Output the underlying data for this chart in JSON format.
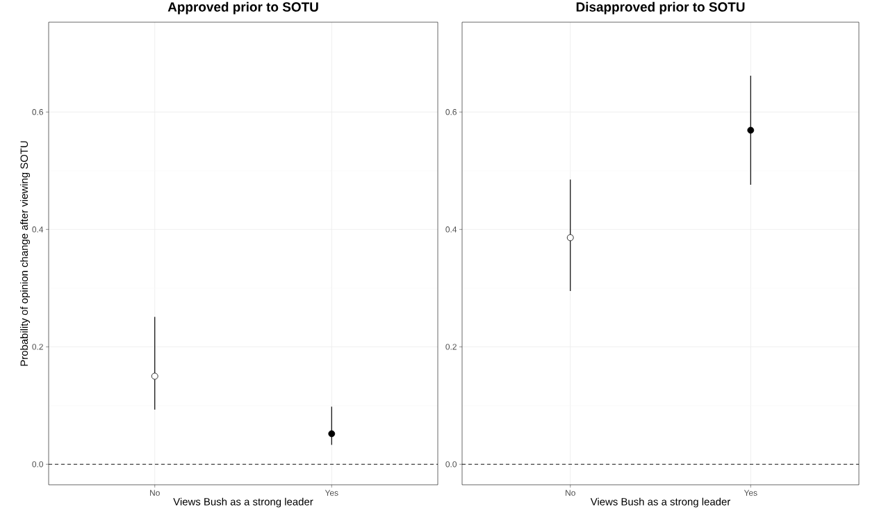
{
  "chart_data": [
    {
      "type": "scatter",
      "title": "Approved prior to SOTU",
      "xlabel": "Views Bush as a strong leader",
      "ylabel": "Probability of opinion change after viewing SOTU",
      "categories": [
        "No",
        "Yes"
      ],
      "ylim": [
        -0.035,
        0.753
      ],
      "yticks": [
        {
          "value": 0,
          "label": "0.0"
        },
        0.2,
        0.4,
        0.6
      ],
      "grid": true,
      "marker": "circle",
      "ref_lines": [
        {
          "axis": "y",
          "value": 0,
          "line_style": "dashed"
        }
      ],
      "series": [
        {
          "color": "#ffffff",
          "values": [
            0.15,
            null
          ],
          "errors": [
            [
              0.093,
              0.251
            ],
            null
          ]
        },
        {
          "color": "#000000",
          "values": [
            null,
            0.052
          ],
          "errors": [
            null,
            [
              0.033,
              0.098
            ]
          ]
        }
      ]
    },
    {
      "type": "scatter",
      "title": "Disapproved prior to SOTU",
      "xlabel": "Views Bush as a strong leader",
      "categories": [
        "No",
        "Yes"
      ],
      "ylim": [
        -0.035,
        0.753
      ],
      "yticks": [
        {
          "value": 0,
          "label": "0.0"
        },
        0.2,
        0.4,
        0.6
      ],
      "grid": true,
      "marker": "circle",
      "ref_lines": [
        {
          "axis": "y",
          "value": 0,
          "line_style": "dashed"
        }
      ],
      "series": [
        {
          "color": "#ffffff",
          "values": [
            0.386,
            null
          ],
          "errors": [
            [
              0.295,
              0.485
            ],
            null
          ]
        },
        {
          "color": "#000000",
          "values": [
            null,
            0.569
          ],
          "errors": [
            null,
            [
              0.476,
              0.662
            ]
          ]
        }
      ]
    }
  ]
}
